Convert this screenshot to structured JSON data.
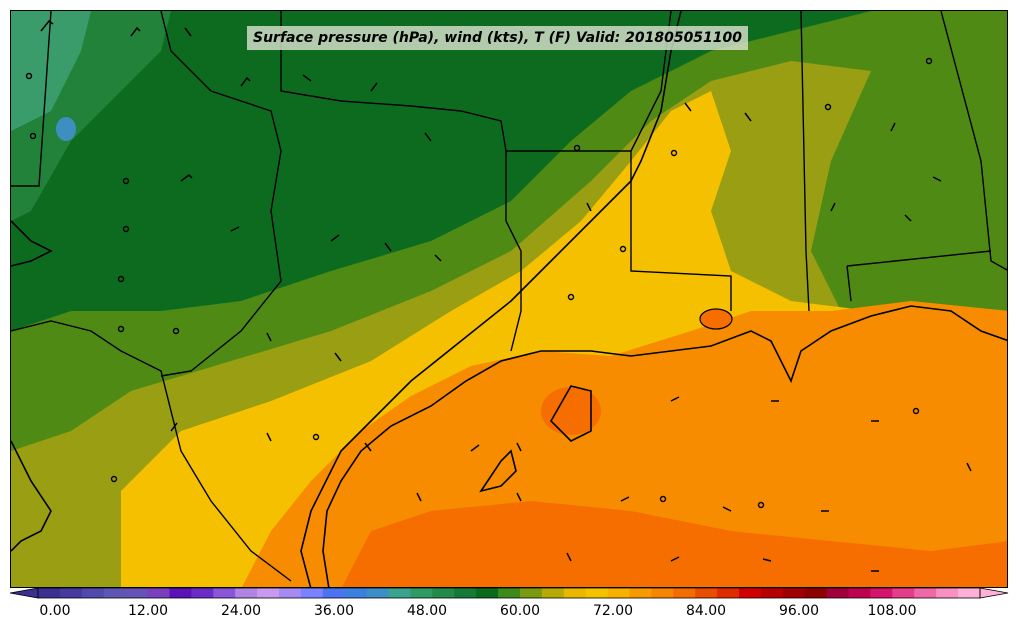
{
  "title": "Surface pressure (hPa), wind (kts), T (F) Valid: 201805051100",
  "colorbar": {
    "ticks": [
      "0.00",
      "12.00",
      "24.00",
      "36.00",
      "48.00",
      "60.00",
      "72.00",
      "84.00",
      "96.00",
      "108.00"
    ],
    "colors": [
      "#3b2f8f",
      "#453aa0",
      "#5249ae",
      "#5d56b5",
      "#6653b8",
      "#7a3fbf",
      "#5b12b8",
      "#6a2bc8",
      "#8a55d8",
      "#b083e5",
      "#c89aef",
      "#a58af2",
      "#7b82ff",
      "#4b74f2",
      "#3d7fe0",
      "#3b8ec8",
      "#3aa38e",
      "#2f9a63",
      "#228a4a",
      "#147a35",
      "#0a6b1f",
      "#3b8a1a",
      "#7a9a10",
      "#b8aa05",
      "#e8b800",
      "#f4c300",
      "#f7b200",
      "#f79a00",
      "#f68500",
      "#f36d00",
      "#e94d00",
      "#df2b00",
      "#d10000",
      "#b80000",
      "#a00000",
      "#8c0000",
      "#a0003c",
      "#c00050",
      "#d4146e",
      "#e63c8c",
      "#f068a8",
      "#f890c4",
      "#ffb0d8"
    ]
  },
  "colors": {
    "dark_green": "#0d6b1f",
    "mid_green": "#22823a",
    "teal_green": "#3a9c6a",
    "olive": "#4f8a14",
    "olive_yellow": "#9a9e12",
    "yellow": "#f4c000",
    "orange": "#f78c00",
    "deep_orange": "#f66e00"
  }
}
